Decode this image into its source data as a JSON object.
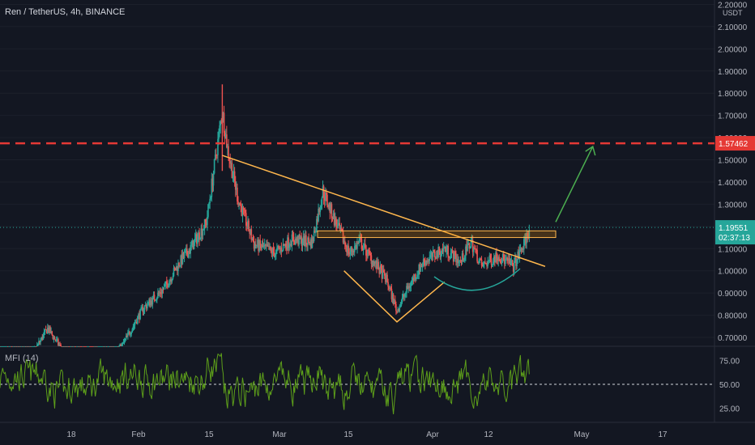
{
  "header": {
    "symbol_label": "Ren / TetherUS, 4h, BINANCE"
  },
  "colors": {
    "background": "#131722",
    "up": "#26a69a",
    "down": "#ef5350",
    "trendline": "#ffb74d",
    "resistance": "#e53935",
    "arrow": "#4caf50",
    "cup": "#26a69a",
    "mfi_line": "#5d9f1a",
    "axis_text": "#b2b5be"
  },
  "price_axis": {
    "currency": "USDT",
    "ticks": [
      "2.20000",
      "2.10000",
      "2.00000",
      "1.90000",
      "1.80000",
      "1.70000",
      "1.60000",
      "1.50000",
      "1.40000",
      "1.30000",
      "1.20000",
      "1.10000",
      "1.00000",
      "0.90000",
      "0.80000",
      "0.70000"
    ],
    "resistance_price": "1.57462",
    "current_price": "1.19551",
    "countdown": "02:37:13"
  },
  "mfi": {
    "label": "MFI (14)",
    "ticks": [
      "75.00",
      "50.00",
      "25.00"
    ]
  },
  "time_axis": {
    "labels": [
      "18",
      "Feb",
      "15",
      "Mar",
      "15",
      "Apr",
      "12",
      "May",
      "17"
    ]
  },
  "chart_data": {
    "type": "candlestick",
    "symbol": "Ren / TetherUS",
    "interval": "4h",
    "exchange": "BINANCE",
    "y_unit": "USDT",
    "ylim": [
      0.66,
      2.22
    ],
    "x_range": [
      "2021-01-09",
      "2021-05-24"
    ],
    "price_path": [
      {
        "date": "2021-01-09",
        "price": 0.45
      },
      {
        "date": "2021-01-15",
        "price": 0.62
      },
      {
        "date": "2021-01-18",
        "price": 0.74
      },
      {
        "date": "2021-01-22",
        "price": 0.6
      },
      {
        "date": "2021-01-27",
        "price": 0.55
      },
      {
        "date": "2021-02-01",
        "price": 0.66
      },
      {
        "date": "2021-02-05",
        "price": 0.83
      },
      {
        "date": "2021-02-09",
        "price": 0.92
      },
      {
        "date": "2021-02-12",
        "price": 1.04
      },
      {
        "date": "2021-02-14",
        "price": 1.1
      },
      {
        "date": "2021-02-17",
        "price": 1.22
      },
      {
        "date": "2021-02-20",
        "price": 1.72
      },
      {
        "date": "2021-02-21",
        "price": 1.55
      },
      {
        "date": "2021-02-23",
        "price": 1.32
      },
      {
        "date": "2021-02-26",
        "price": 1.12
      },
      {
        "date": "2021-03-02",
        "price": 1.08
      },
      {
        "date": "2021-03-05",
        "price": 1.14
      },
      {
        "date": "2021-03-09",
        "price": 1.13
      },
      {
        "date": "2021-03-11",
        "price": 1.36
      },
      {
        "date": "2021-03-13",
        "price": 1.24
      },
      {
        "date": "2021-03-16",
        "price": 1.08
      },
      {
        "date": "2021-03-18",
        "price": 1.13
      },
      {
        "date": "2021-03-20",
        "price": 1.06
      },
      {
        "date": "2021-03-23",
        "price": 0.96
      },
      {
        "date": "2021-03-25",
        "price": 0.82
      },
      {
        "date": "2021-03-27",
        "price": 0.92
      },
      {
        "date": "2021-03-30",
        "price": 1.04
      },
      {
        "date": "2021-04-03",
        "price": 1.1
      },
      {
        "date": "2021-04-06",
        "price": 1.04
      },
      {
        "date": "2021-04-08",
        "price": 1.13
      },
      {
        "date": "2021-04-10",
        "price": 1.02
      },
      {
        "date": "2021-04-13",
        "price": 1.07
      },
      {
        "date": "2021-04-16",
        "price": 1.02
      },
      {
        "date": "2021-04-18",
        "price": 1.12
      },
      {
        "date": "2021-04-19",
        "price": 1.19
      }
    ],
    "mfi_ylim": [
      10,
      90
    ],
    "mfi_levels": [
      75,
      50,
      25
    ],
    "annotations": {
      "resistance_level": 1.57462,
      "current_price": 1.19551,
      "descending_trendline": [
        {
          "date": "2021-02-20",
          "price": 1.52
        },
        {
          "date": "2021-04-22",
          "price": 1.02
        }
      ],
      "supply_zone": {
        "from": "2021-03-10",
        "to": "2021-04-24",
        "low": 1.15,
        "high": 1.18
      },
      "v_bottom": [
        {
          "date": "2021-03-15",
          "price": 1.0
        },
        {
          "date": "2021-03-25",
          "price": 0.77
        },
        {
          "date": "2021-04-03",
          "price": 0.95
        }
      ],
      "target_arrow": [
        {
          "date": "2021-04-24",
          "price": 1.22
        },
        {
          "date": "2021-05-01",
          "price": 1.56
        }
      ]
    }
  }
}
